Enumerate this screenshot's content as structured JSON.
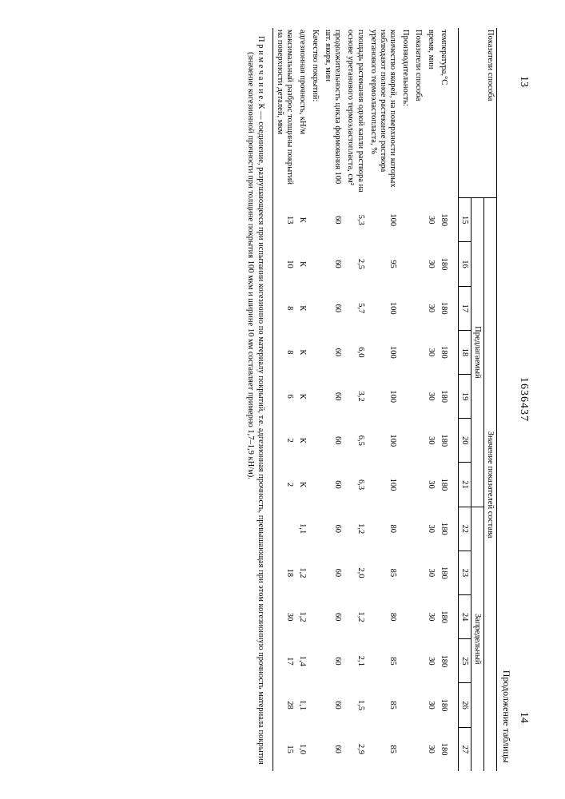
{
  "page_left": "13",
  "patent_number": "1636437",
  "page_right": "14",
  "continuation": "Продолжение таблицы",
  "header": {
    "main_left": "Показатели способа",
    "main_right": "Значение показателей состава",
    "group1": "Предлагаемый",
    "group2": "Запредельный"
  },
  "cols": [
    "15",
    "16",
    "17",
    "18",
    "19",
    "20",
    "21",
    "22",
    "23",
    "24",
    "25",
    "26",
    "27"
  ],
  "rows": [
    {
      "label": "температура,°С",
      "vals": [
        "180",
        "180",
        "180",
        "180",
        "180",
        "180",
        "180",
        "180",
        "180",
        "180",
        "180",
        "180",
        "180"
      ]
    },
    {
      "label": "время, мин",
      "vals": [
        "30",
        "30",
        "30",
        "30",
        "30",
        "30",
        "30",
        "30",
        "30",
        "30",
        "30",
        "30",
        "30"
      ]
    },
    {
      "label": "Показатели способа",
      "vals": [
        "",
        "",
        "",
        "",
        "",
        "",
        "",
        "",
        "",
        "",
        "",
        "",
        ""
      ],
      "bold": true
    },
    {
      "label": "Производительность:",
      "vals": [
        "",
        "",
        "",
        "",
        "",
        "",
        "",
        "",
        "",
        "",
        "",
        "",
        ""
      ]
    },
    {
      "label": "количество якорей, на поверхности которых наблюдают полное растекание раствора уретанового термоэластопласта, %",
      "vals": [
        "100",
        "95",
        "100",
        "100",
        "100",
        "100",
        "100",
        "80",
        "85",
        "80",
        "85",
        "85",
        "85"
      ]
    },
    {
      "label": "площадь растекания одной капли раствора на основе уретанового термоэластопласта, см²",
      "vals": [
        "5,3",
        "2,5",
        "5,7",
        "6,0",
        "3,2",
        "6,5",
        "6,3",
        "1,2",
        "2,0",
        "1,2",
        "2,1",
        "1,5",
        "2,9"
      ]
    },
    {
      "label": "продолжительность цикла формования 100 шт. якоря, мин",
      "vals": [
        "60",
        "60",
        "60",
        "60",
        "60",
        "60",
        "60",
        "60",
        "60",
        "60",
        "60",
        "60",
        "60"
      ]
    },
    {
      "label": "Качество покрытий:",
      "vals": [
        "",
        "",
        "",
        "",
        "",
        "",
        "",
        "",
        "",
        "",
        "",
        "",
        ""
      ]
    },
    {
      "label": "адгезионная прочность, кН/м",
      "vals": [
        "К",
        "К",
        "К",
        "К",
        "К",
        "К",
        "К",
        "1,1",
        "1,2",
        "1,2",
        "1,4",
        "1,1",
        "1,0"
      ]
    },
    {
      "label": "максимальный разброс толщины покрытий на поверхности деталей, мкм",
      "vals": [
        "13",
        "10",
        "8",
        "8",
        "6",
        "2",
        "2",
        "",
        "18",
        "30",
        "17",
        "28",
        "15"
      ]
    }
  ],
  "footnote": "П р и м е ч а н и е. К — соединение, разрушающееся при испытании когезионно по материалу покрытий, т.е. адгезионная прочность, превышающая при этом когезионную прочность материала покрытия (значение когезионной прочности при толщине покрытия 100 мкм и ширине 10 мм составляет примерно 1,7–1,9 кН/м)."
}
